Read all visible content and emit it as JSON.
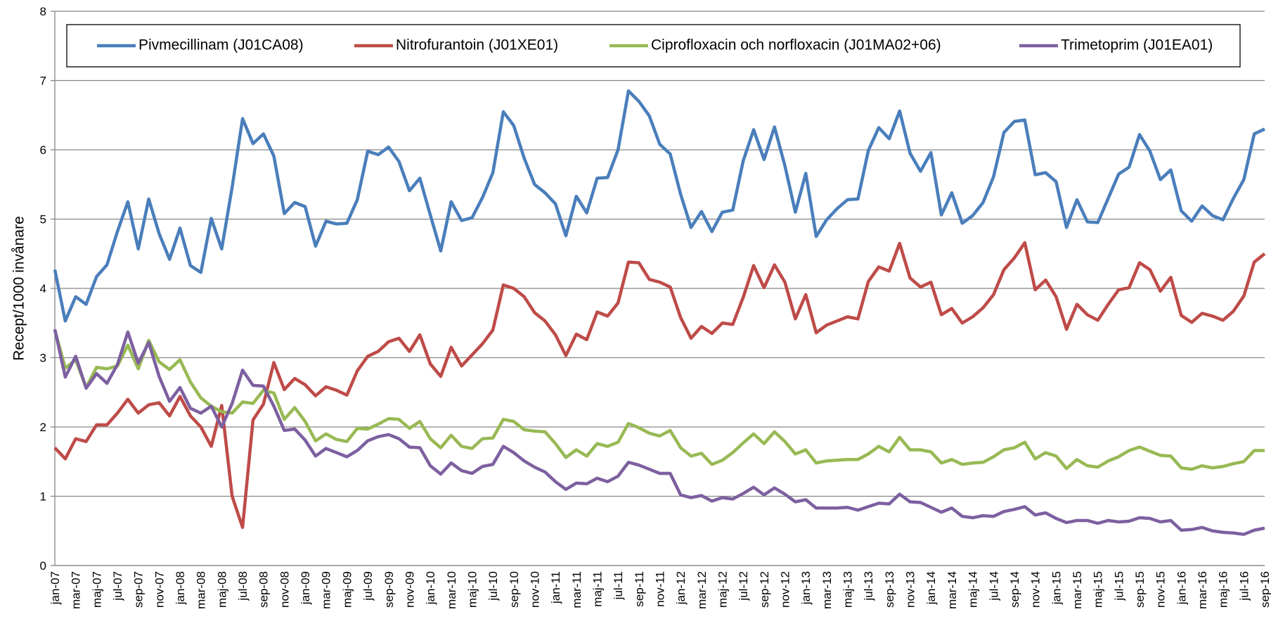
{
  "chart_data": {
    "type": "line",
    "y_label": "Recept/1000 invånare",
    "ylim": [
      0,
      8
    ],
    "yticks": [
      0,
      1,
      2,
      3,
      4,
      5,
      6,
      7,
      8
    ],
    "grid": true,
    "legend": "top",
    "categories": [
      "jan-07",
      null,
      "mar-07",
      null,
      "maj-07",
      null,
      "jul-07",
      null,
      "sep-07",
      null,
      "nov-07",
      null,
      "jan-08",
      null,
      "mar-08",
      null,
      "maj-08",
      null,
      "jul-08",
      null,
      "sep-08",
      null,
      "nov-08",
      null,
      "jan-09",
      null,
      "mar-09",
      null,
      "maj-09",
      null,
      "jul-09",
      null,
      "sep-09",
      null,
      "nov-09",
      null,
      "jan-10",
      null,
      "mar-10",
      null,
      "maj-10",
      null,
      "jul-10",
      null,
      "sep-10",
      null,
      "nov-10",
      null,
      "jan-11",
      null,
      "mar-11",
      null,
      "maj-11",
      null,
      "jul-11",
      null,
      "sep-11",
      null,
      "nov-11",
      null,
      "jan-12",
      null,
      "mar-12",
      null,
      "maj-12",
      null,
      "jul-12",
      null,
      "sep-12",
      null,
      "nov-12",
      null,
      "jan-13",
      null,
      "mar-13",
      null,
      "maj-13",
      null,
      "jul-13",
      null,
      "sep-13",
      null,
      "nov-13",
      null,
      "jan-14",
      null,
      "mar-14",
      null,
      "maj-14",
      null,
      "jul-14",
      null,
      "sep-14",
      null,
      "nov-14",
      null,
      "jan-15",
      null,
      "mar-15",
      null,
      "maj-15",
      null,
      "jul-15",
      null,
      "sep-15",
      null,
      "nov-15",
      null,
      "jan-16",
      null,
      "mar-16",
      null,
      "maj-16",
      null,
      "jul-16",
      null,
      "sep-16"
    ],
    "series": [
      {
        "name": "Pivmecillinam (J01CA08)",
        "color": "#4a7ebb",
        "values": [
          4.27,
          3.53,
          3.88,
          3.77,
          4.17,
          4.34,
          4.82,
          5.25,
          4.57,
          5.29,
          4.79,
          4.42,
          4.87,
          4.33,
          4.23,
          5.01,
          4.57,
          5.46,
          6.45,
          6.09,
          6.23,
          5.91,
          5.08,
          5.24,
          5.18,
          4.61,
          4.97,
          4.93,
          4.94,
          5.28,
          5.98,
          5.93,
          6.04,
          5.83,
          5.41,
          5.59,
          5.06,
          4.54,
          5.25,
          4.98,
          5.02,
          5.31,
          5.67,
          6.55,
          6.35,
          5.88,
          5.5,
          5.38,
          5.22,
          4.76,
          5.33,
          5.09,
          5.59,
          5.6,
          6.0,
          6.85,
          6.7,
          6.49,
          6.08,
          5.94,
          5.36,
          4.88,
          5.11,
          4.82,
          5.1,
          5.13,
          5.84,
          6.29,
          5.86,
          6.33,
          5.77,
          5.1,
          5.66,
          4.75,
          4.99,
          5.15,
          5.28,
          5.29,
          5.99,
          6.32,
          6.16,
          6.56,
          5.95,
          5.69,
          5.96,
          5.06,
          5.38,
          4.94,
          5.05,
          5.24,
          5.61,
          6.25,
          6.41,
          6.43,
          5.64,
          5.67,
          5.54,
          4.88,
          5.28,
          4.96,
          4.95,
          5.3,
          5.65,
          5.75,
          6.22,
          5.98,
          5.57,
          5.71,
          5.12,
          4.97,
          5.19,
          5.05,
          4.99,
          5.3,
          5.57,
          6.23,
          6.3
        ]
      },
      {
        "name": "Nitrofurantoin (J01XE01)",
        "color": "#be4b48",
        "values": [
          1.7,
          1.54,
          1.83,
          1.79,
          2.03,
          2.03,
          2.2,
          2.4,
          2.2,
          2.32,
          2.35,
          2.16,
          2.44,
          2.16,
          2.0,
          1.72,
          2.31,
          1.0,
          0.55,
          2.1,
          2.33,
          2.93,
          2.54,
          2.7,
          2.61,
          2.45,
          2.58,
          2.53,
          2.46,
          2.81,
          3.02,
          3.09,
          3.23,
          3.28,
          3.09,
          3.33,
          2.91,
          2.73,
          3.15,
          2.88,
          3.04,
          3.2,
          3.4,
          4.05,
          4.0,
          3.88,
          3.65,
          3.53,
          3.33,
          3.03,
          3.34,
          3.26,
          3.66,
          3.6,
          3.79,
          4.38,
          4.37,
          4.13,
          4.09,
          4.02,
          3.58,
          3.28,
          3.45,
          3.35,
          3.5,
          3.48,
          3.87,
          4.33,
          4.01,
          4.34,
          4.09,
          3.56,
          3.91,
          3.36,
          3.47,
          3.53,
          3.59,
          3.56,
          4.1,
          4.31,
          4.25,
          4.65,
          4.15,
          4.02,
          4.09,
          3.62,
          3.71,
          3.5,
          3.59,
          3.72,
          3.91,
          4.27,
          4.44,
          4.66,
          3.98,
          4.12,
          3.88,
          3.41,
          3.77,
          3.62,
          3.54,
          3.77,
          3.98,
          4.01,
          4.37,
          4.27,
          3.96,
          4.16,
          3.61,
          3.51,
          3.64,
          3.6,
          3.54,
          3.67,
          3.89,
          4.38,
          4.5
        ]
      },
      {
        "name": "Ciprofloxacin och norfloxacin (J01MA02+06)",
        "color": "#98b954",
        "values": [
          3.4,
          2.85,
          2.97,
          2.57,
          2.86,
          2.84,
          2.88,
          3.18,
          2.84,
          3.25,
          2.94,
          2.83,
          2.97,
          2.65,
          2.42,
          2.3,
          2.22,
          2.2,
          2.36,
          2.34,
          2.53,
          2.49,
          2.11,
          2.28,
          2.08,
          1.8,
          1.9,
          1.82,
          1.79,
          1.98,
          1.97,
          2.04,
          2.12,
          2.11,
          1.98,
          2.08,
          1.83,
          1.7,
          1.88,
          1.72,
          1.69,
          1.83,
          1.84,
          2.11,
          2.08,
          1.96,
          1.94,
          1.93,
          1.76,
          1.56,
          1.67,
          1.58,
          1.76,
          1.72,
          1.78,
          2.05,
          1.99,
          1.91,
          1.87,
          1.95,
          1.7,
          1.58,
          1.62,
          1.46,
          1.52,
          1.63,
          1.77,
          1.9,
          1.76,
          1.93,
          1.79,
          1.61,
          1.67,
          1.48,
          1.51,
          1.52,
          1.53,
          1.53,
          1.61,
          1.72,
          1.64,
          1.85,
          1.67,
          1.67,
          1.64,
          1.48,
          1.53,
          1.46,
          1.48,
          1.49,
          1.57,
          1.67,
          1.7,
          1.78,
          1.54,
          1.63,
          1.58,
          1.4,
          1.53,
          1.44,
          1.42,
          1.51,
          1.57,
          1.66,
          1.71,
          1.65,
          1.59,
          1.58,
          1.41,
          1.39,
          1.44,
          1.41,
          1.43,
          1.47,
          1.5,
          1.66,
          1.66
        ]
      },
      {
        "name": "Trimetoprim (J01EA01)",
        "color": "#7d60a0",
        "values": [
          3.41,
          2.72,
          3.02,
          2.56,
          2.77,
          2.63,
          2.9,
          3.37,
          2.92,
          3.22,
          2.73,
          2.37,
          2.57,
          2.27,
          2.2,
          2.3,
          2.0,
          2.34,
          2.82,
          2.6,
          2.59,
          2.3,
          1.95,
          1.97,
          1.81,
          1.58,
          1.69,
          1.63,
          1.57,
          1.66,
          1.8,
          1.86,
          1.89,
          1.83,
          1.71,
          1.7,
          1.44,
          1.32,
          1.48,
          1.37,
          1.33,
          1.43,
          1.46,
          1.72,
          1.63,
          1.51,
          1.42,
          1.35,
          1.21,
          1.1,
          1.19,
          1.18,
          1.26,
          1.21,
          1.29,
          1.49,
          1.45,
          1.39,
          1.33,
          1.33,
          1.02,
          0.98,
          1.01,
          0.93,
          0.98,
          0.96,
          1.04,
          1.13,
          1.02,
          1.12,
          1.03,
          0.92,
          0.95,
          0.83,
          0.83,
          0.83,
          0.84,
          0.8,
          0.85,
          0.9,
          0.89,
          1.03,
          0.92,
          0.91,
          0.84,
          0.77,
          0.83,
          0.71,
          0.69,
          0.72,
          0.71,
          0.78,
          0.81,
          0.85,
          0.73,
          0.76,
          0.68,
          0.62,
          0.65,
          0.65,
          0.61,
          0.65,
          0.63,
          0.64,
          0.69,
          0.68,
          0.63,
          0.65,
          0.51,
          0.52,
          0.55,
          0.5,
          0.48,
          0.47,
          0.45,
          0.51,
          0.54
        ]
      }
    ]
  }
}
